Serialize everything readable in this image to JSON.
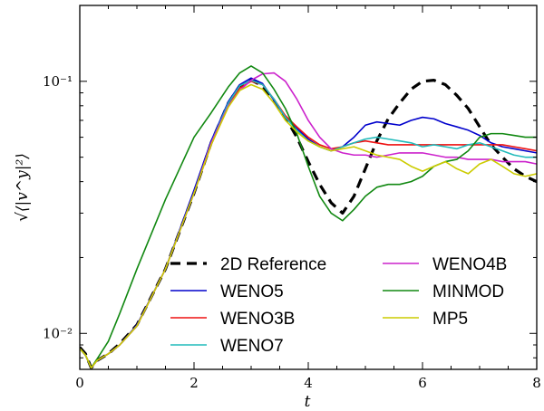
{
  "chart_data": {
    "type": "line",
    "xlabel": "t",
    "ylabel": "√⟨|v^y|²⟩",
    "y_scale": "log",
    "xlim": [
      0,
      8
    ],
    "ylim": [
      0.0072,
      0.2
    ],
    "x_ticks": [
      0,
      2,
      4,
      6,
      8
    ],
    "x_tick_labels": [
      "0",
      "2",
      "4",
      "6",
      "8"
    ],
    "y_major_ticks": [
      0.01,
      0.1
    ],
    "y_tick_labels": [
      "10⁻²",
      "10⁻¹"
    ],
    "legend_position": "lower-center",
    "series": [
      {
        "name": "2D Reference",
        "color": "#000000",
        "dash": "dashed",
        "x": [
          0,
          0.1,
          0.2,
          0.3,
          0.5,
          0.7,
          1.0,
          1.5,
          2.0,
          2.3,
          2.6,
          2.8,
          3.0,
          3.2,
          3.4,
          3.6,
          3.8,
          4.0,
          4.2,
          4.4,
          4.6,
          4.8,
          5.0,
          5.2,
          5.4,
          5.6,
          5.8,
          6.0,
          6.2,
          6.4,
          6.6,
          6.8,
          7.0,
          7.2,
          7.4,
          7.6,
          7.8,
          8.0
        ],
        "y": [
          0.0088,
          0.0083,
          0.0073,
          0.0078,
          0.0083,
          0.0091,
          0.0108,
          0.018,
          0.036,
          0.057,
          0.082,
          0.096,
          0.101,
          0.096,
          0.083,
          0.072,
          0.06,
          0.048,
          0.039,
          0.033,
          0.03,
          0.035,
          0.045,
          0.058,
          0.071,
          0.082,
          0.093,
          0.1,
          0.101,
          0.097,
          0.088,
          0.078,
          0.066,
          0.056,
          0.05,
          0.045,
          0.042,
          0.04
        ]
      },
      {
        "name": "WENO5",
        "color": "#0000cc",
        "dash": "solid",
        "x": [
          0,
          0.1,
          0.2,
          0.3,
          0.5,
          0.7,
          1.0,
          1.5,
          2.0,
          2.3,
          2.6,
          2.8,
          3.0,
          3.2,
          3.4,
          3.6,
          3.8,
          4.0,
          4.2,
          4.4,
          4.6,
          4.8,
          5.0,
          5.2,
          5.4,
          5.6,
          5.8,
          6.0,
          6.2,
          6.4,
          6.6,
          6.8,
          7.0,
          7.2,
          7.4,
          7.6,
          7.8,
          8.0
        ],
        "y": [
          0.0087,
          0.0082,
          0.0073,
          0.0078,
          0.0083,
          0.009,
          0.0108,
          0.018,
          0.037,
          0.058,
          0.083,
          0.097,
          0.103,
          0.098,
          0.084,
          0.072,
          0.065,
          0.059,
          0.055,
          0.053,
          0.055,
          0.06,
          0.067,
          0.069,
          0.068,
          0.067,
          0.07,
          0.072,
          0.071,
          0.068,
          0.066,
          0.064,
          0.061,
          0.057,
          0.055,
          0.054,
          0.053,
          0.052
        ]
      },
      {
        "name": "WENO3B",
        "color": "#ee1111",
        "dash": "solid",
        "x": [
          0,
          0.1,
          0.2,
          0.3,
          0.5,
          0.7,
          1.0,
          1.5,
          2.0,
          2.3,
          2.6,
          2.8,
          3.0,
          3.2,
          3.4,
          3.6,
          3.8,
          4.0,
          4.2,
          4.4,
          4.6,
          4.8,
          5.0,
          5.2,
          5.4,
          5.6,
          5.8,
          6.0,
          6.2,
          6.4,
          6.6,
          6.8,
          7.0,
          7.2,
          7.4,
          7.6,
          7.8,
          8.0
        ],
        "y": [
          0.0087,
          0.0082,
          0.0073,
          0.0078,
          0.0083,
          0.009,
          0.0107,
          0.018,
          0.036,
          0.056,
          0.08,
          0.094,
          0.1,
          0.097,
          0.085,
          0.073,
          0.066,
          0.06,
          0.056,
          0.054,
          0.055,
          0.057,
          0.058,
          0.057,
          0.056,
          0.056,
          0.056,
          0.056,
          0.056,
          0.056,
          0.056,
          0.056,
          0.056,
          0.056,
          0.056,
          0.055,
          0.054,
          0.053
        ]
      },
      {
        "name": "WENO7",
        "color": "#22bbbb",
        "dash": "solid",
        "x": [
          0,
          0.1,
          0.2,
          0.3,
          0.5,
          0.7,
          1.0,
          1.5,
          2.0,
          2.3,
          2.6,
          2.8,
          3.0,
          3.2,
          3.4,
          3.6,
          3.8,
          4.0,
          4.2,
          4.4,
          4.6,
          4.8,
          5.0,
          5.2,
          5.4,
          5.6,
          5.8,
          6.0,
          6.2,
          6.4,
          6.6,
          6.8,
          7.0,
          7.2,
          7.4,
          7.6,
          7.8,
          8.0
        ],
        "y": [
          0.0087,
          0.0082,
          0.0073,
          0.0078,
          0.0083,
          0.009,
          0.0107,
          0.018,
          0.036,
          0.057,
          0.082,
          0.096,
          0.101,
          0.097,
          0.085,
          0.072,
          0.064,
          0.058,
          0.055,
          0.053,
          0.055,
          0.057,
          0.059,
          0.06,
          0.059,
          0.058,
          0.057,
          0.055,
          0.056,
          0.055,
          0.054,
          0.056,
          0.057,
          0.055,
          0.053,
          0.051,
          0.05,
          0.05
        ]
      },
      {
        "name": "WENO4B",
        "color": "#cc22cc",
        "dash": "solid",
        "x": [
          0,
          0.1,
          0.2,
          0.3,
          0.5,
          0.7,
          1.0,
          1.5,
          2.0,
          2.3,
          2.6,
          2.8,
          3.0,
          3.2,
          3.4,
          3.6,
          3.8,
          4.0,
          4.2,
          4.4,
          4.6,
          4.8,
          5.0,
          5.2,
          5.4,
          5.6,
          5.8,
          6.0,
          6.2,
          6.4,
          6.6,
          6.8,
          7.0,
          7.2,
          7.4,
          7.6,
          7.8,
          8.0
        ],
        "y": [
          0.0087,
          0.0082,
          0.0073,
          0.0078,
          0.0083,
          0.009,
          0.0107,
          0.018,
          0.036,
          0.057,
          0.08,
          0.092,
          0.101,
          0.107,
          0.108,
          0.1,
          0.085,
          0.07,
          0.06,
          0.054,
          0.052,
          0.051,
          0.051,
          0.05,
          0.051,
          0.052,
          0.052,
          0.052,
          0.051,
          0.05,
          0.05,
          0.049,
          0.049,
          0.049,
          0.048,
          0.048,
          0.048,
          0.047
        ]
      },
      {
        "name": "MINMOD",
        "color": "#118811",
        "dash": "solid",
        "x": [
          0,
          0.1,
          0.2,
          0.3,
          0.5,
          0.7,
          1.0,
          1.5,
          2.0,
          2.3,
          2.6,
          2.8,
          3.0,
          3.2,
          3.4,
          3.6,
          3.8,
          4.0,
          4.2,
          4.4,
          4.6,
          4.8,
          5.0,
          5.2,
          5.4,
          5.6,
          5.8,
          6.0,
          6.2,
          6.4,
          6.6,
          6.8,
          7.0,
          7.2,
          7.4,
          7.6,
          7.8,
          8.0
        ],
        "y": [
          0.0087,
          0.0082,
          0.0073,
          0.0079,
          0.0093,
          0.012,
          0.018,
          0.034,
          0.06,
          0.075,
          0.095,
          0.108,
          0.115,
          0.108,
          0.093,
          0.078,
          0.062,
          0.046,
          0.035,
          0.03,
          0.028,
          0.031,
          0.035,
          0.038,
          0.039,
          0.039,
          0.04,
          0.042,
          0.046,
          0.048,
          0.049,
          0.053,
          0.06,
          0.062,
          0.062,
          0.061,
          0.06,
          0.06
        ]
      },
      {
        "name": "MP5",
        "color": "#cccc00",
        "dash": "solid",
        "x": [
          0,
          0.1,
          0.2,
          0.3,
          0.5,
          0.7,
          1.0,
          1.5,
          2.0,
          2.3,
          2.6,
          2.8,
          3.0,
          3.2,
          3.4,
          3.6,
          3.8,
          4.0,
          4.2,
          4.4,
          4.6,
          4.8,
          5.0,
          5.2,
          5.4,
          5.6,
          5.8,
          6.0,
          6.2,
          6.4,
          6.6,
          6.8,
          7.0,
          7.2,
          7.4,
          7.6,
          7.8,
          8.0
        ],
        "y": [
          0.0087,
          0.0082,
          0.0073,
          0.0078,
          0.0083,
          0.009,
          0.0107,
          0.018,
          0.036,
          0.056,
          0.079,
          0.092,
          0.097,
          0.093,
          0.082,
          0.07,
          0.063,
          0.058,
          0.055,
          0.053,
          0.054,
          0.055,
          0.053,
          0.051,
          0.05,
          0.049,
          0.046,
          0.044,
          0.046,
          0.048,
          0.045,
          0.043,
          0.047,
          0.049,
          0.046,
          0.043,
          0.042,
          0.043
        ]
      }
    ]
  }
}
